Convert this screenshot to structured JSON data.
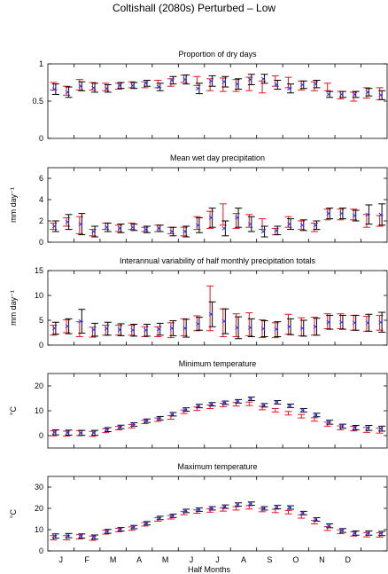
{
  "figure_title": "Coltishall (2080s) Perturbed – Low",
  "months": [
    "J",
    "F",
    "M",
    "A",
    "M",
    "J",
    "J",
    "A",
    "S",
    "O",
    "N",
    "D"
  ],
  "xlabel": "Half Months",
  "colors": {
    "observed": "#e8141e",
    "model": "#000000",
    "marker": "#3a3aff"
  },
  "chart_data": [
    {
      "type": "errorbar",
      "title": "Proportion of dry days",
      "ylabel": "",
      "ylim": [
        0,
        1
      ],
      "yticks": [
        "0",
        "0.5",
        "1"
      ],
      "ytick_values": [
        0,
        0.5,
        1
      ],
      "series": [
        {
          "name": "",
          "values": [
            0.7,
            0.64,
            0.72,
            0.7,
            0.69,
            0.7,
            0.72,
            0.72,
            0.73,
            0.75,
            0.8,
            0.77,
            0.72,
            0.72,
            0.71,
            0.73,
            0.69,
            0.77,
            0.75,
            0.71,
            0.7,
            0.69,
            0.58,
            0.56,
            0.61,
            0.6
          ],
          "err": [
            0.05,
            0.06,
            0.07,
            0.05,
            0.05,
            0.04,
            0.04,
            0.04,
            0.05,
            0.05,
            0.05,
            0.06,
            0.08,
            0.09,
            0.08,
            0.09,
            0.08,
            0.07,
            0.07,
            0.06,
            0.06,
            0.05,
            0.05,
            0.06,
            0.07,
            0.08
          ]
        },
        {
          "name": "",
          "values": [
            0.66,
            0.62,
            0.7,
            0.68,
            0.67,
            0.71,
            0.71,
            0.74,
            0.69,
            0.78,
            0.79,
            0.67,
            0.77,
            0.76,
            0.73,
            0.79,
            0.8,
            0.72,
            0.67,
            0.72,
            0.73,
            0.59,
            0.59,
            0.59,
            0.62,
            0.58
          ],
          "err": [
            0.07,
            0.07,
            0.06,
            0.06,
            0.05,
            0.04,
            0.04,
            0.04,
            0.05,
            0.05,
            0.06,
            0.07,
            0.07,
            0.07,
            0.07,
            0.07,
            0.06,
            0.06,
            0.06,
            0.05,
            0.05,
            0.04,
            0.04,
            0.04,
            0.05,
            0.06
          ]
        }
      ]
    },
    {
      "type": "errorbar",
      "title": "Mean wet day precipitation",
      "ylabel": "mm day⁻¹",
      "ylim": [
        0,
        7
      ],
      "yticks": [
        "0",
        "2",
        "4",
        "6"
      ],
      "ytick_values": [
        0,
        2,
        4,
        6
      ],
      "series": [
        {
          "name": "",
          "values": [
            1.5,
            1.9,
            1.6,
            0.9,
            1.5,
            1.3,
            1.5,
            1.2,
            1.3,
            1.1,
            1.0,
            1.8,
            2.1,
            2.6,
            2.0,
            2.0,
            1.7,
            1.0,
            1.9,
            1.6,
            1.4,
            2.6,
            2.6,
            2.6,
            2.0,
            2.0
          ],
          "err": [
            0.3,
            0.4,
            0.8,
            0.3,
            0.3,
            0.3,
            0.3,
            0.2,
            0.3,
            0.3,
            0.4,
            0.6,
            0.8,
            1.0,
            0.7,
            0.6,
            0.5,
            0.3,
            0.5,
            0.4,
            0.4,
            0.5,
            0.5,
            0.5,
            0.6,
            0.5
          ]
        },
        {
          "name": "",
          "values": [
            1.5,
            1.9,
            1.7,
            1.0,
            1.4,
            1.3,
            1.4,
            1.2,
            1.3,
            1.0,
            1.0,
            1.6,
            2.3,
            1.3,
            2.3,
            1.7,
            1.0,
            1.1,
            1.7,
            1.6,
            1.6,
            2.7,
            2.7,
            2.5,
            2.6,
            2.6
          ],
          "err": [
            0.5,
            0.7,
            1.0,
            0.5,
            0.4,
            0.4,
            0.3,
            0.3,
            0.3,
            0.4,
            0.5,
            0.7,
            0.9,
            0.7,
            0.9,
            0.7,
            0.5,
            0.4,
            0.5,
            0.5,
            0.4,
            0.5,
            0.5,
            0.5,
            0.9,
            1.0
          ]
        }
      ]
    },
    {
      "type": "errorbar",
      "title": "Interannual variability of half monthly precipitation totals",
      "ylabel": "mm day⁻¹",
      "ylim": [
        0,
        15
      ],
      "yticks": [
        "0",
        "5",
        "10",
        "15"
      ],
      "ytick_values": [
        0,
        5,
        10,
        15
      ],
      "series": [
        {
          "name": "",
          "values": [
            3.0,
            3.8,
            3.2,
            2.6,
            3.0,
            3.0,
            3.0,
            2.7,
            2.7,
            3.0,
            3.6,
            4.4,
            7.4,
            4.5,
            4.0,
            4.2,
            3.3,
            3.0,
            4.2,
            3.7,
            3.8,
            4.8,
            4.8,
            4.5,
            4.3,
            4.5
          ],
          "err": [
            1.0,
            1.3,
            1.5,
            1.0,
            1.0,
            1.0,
            1.0,
            1.0,
            1.0,
            1.5,
            1.7,
            1.5,
            4.5,
            2.8,
            2.3,
            2.3,
            1.8,
            1.5,
            2.0,
            1.8,
            1.8,
            1.5,
            1.5,
            1.5,
            1.5,
            1.5
          ]
        },
        {
          "name": "",
          "values": [
            3.4,
            3.8,
            4.8,
            3.1,
            3.3,
            3.1,
            3.0,
            3.0,
            3.2,
            3.4,
            3.4,
            4.3,
            6.2,
            4.8,
            3.5,
            3.5,
            3.3,
            3.2,
            3.7,
            3.4,
            3.7,
            4.6,
            4.6,
            4.5,
            4.5,
            4.6
          ],
          "err": [
            1.2,
            1.5,
            2.4,
            1.3,
            1.3,
            1.2,
            1.2,
            1.2,
            1.2,
            1.5,
            1.8,
            1.3,
            2.5,
            2.5,
            2.2,
            1.8,
            1.6,
            1.5,
            1.6,
            1.6,
            1.7,
            1.4,
            1.4,
            1.5,
            1.7,
            2.0
          ]
        }
      ]
    },
    {
      "type": "errorbar",
      "title": "Minimum temperature",
      "ylabel": "°C",
      "ylim": [
        -5,
        25
      ],
      "yticks": [
        "0",
        "10",
        "20"
      ],
      "ytick_values": [
        0,
        10,
        20
      ],
      "series": [
        {
          "name": "",
          "values": [
            0.9,
            0.8,
            1.0,
            0.7,
            2.0,
            3.0,
            3.8,
            5.5,
            6.4,
            7.3,
            9.6,
            10.8,
            11.6,
            12.3,
            12.6,
            12.8,
            11.1,
            10.2,
            9.0,
            7.8,
            6.5,
            4.6,
            3.1,
            2.8,
            2.3,
            2.0
          ],
          "err": [
            1.0,
            1.0,
            1.0,
            1.0,
            0.8,
            0.7,
            0.7,
            0.7,
            0.7,
            0.7,
            0.7,
            0.7,
            0.7,
            0.7,
            0.7,
            0.7,
            0.7,
            0.7,
            0.7,
            0.7,
            0.7,
            0.8,
            0.8,
            0.9,
            1.0,
            1.0
          ]
        },
        {
          "name": "",
          "values": [
            1.3,
            1.2,
            1.1,
            1.1,
            2.4,
            3.5,
            4.5,
            6.0,
            7.0,
            8.6,
            10.5,
            11.9,
            12.6,
            13.2,
            13.8,
            14.8,
            12.2,
            13.4,
            12.0,
            10.2,
            8.3,
            5.4,
            3.8,
            3.2,
            3.1,
            2.8
          ],
          "err": [
            1.0,
            1.0,
            1.0,
            1.0,
            0.8,
            0.7,
            0.7,
            0.7,
            0.7,
            0.7,
            0.7,
            0.7,
            0.7,
            0.7,
            0.7,
            0.7,
            0.7,
            0.7,
            0.7,
            0.7,
            0.7,
            0.8,
            0.8,
            0.9,
            1.0,
            1.0
          ]
        }
      ]
    },
    {
      "type": "errorbar",
      "title": "Maximum temperature",
      "ylabel": "°C",
      "ylim": [
        0,
        35
      ],
      "yticks": [
        "0",
        "10",
        "20",
        "30"
      ],
      "ytick_values": [
        0,
        10,
        20,
        30
      ],
      "series": [
        {
          "name": "",
          "values": [
            6.2,
            6.2,
            6.6,
            6.0,
            8.8,
            9.8,
            10.5,
            12.5,
            14.8,
            15.8,
            17.8,
            18.5,
            19.0,
            19.5,
            20.0,
            20.5,
            19.2,
            18.8,
            18.2,
            16.2,
            13.5,
            10.5,
            9.0,
            8.0,
            7.6,
            7.5
          ],
          "err": [
            1.0,
            1.0,
            1.0,
            1.0,
            0.9,
            0.8,
            0.8,
            0.8,
            0.8,
            0.8,
            0.8,
            0.8,
            0.8,
            0.8,
            0.8,
            0.8,
            0.8,
            0.8,
            0.8,
            0.8,
            0.8,
            0.9,
            0.9,
            1.0,
            1.0,
            1.0
          ]
        },
        {
          "name": "",
          "values": [
            7.0,
            7.2,
            7.0,
            6.5,
            9.2,
            10.2,
            11.2,
            13.0,
            15.5,
            16.5,
            18.8,
            19.4,
            20.0,
            20.8,
            21.8,
            22.2,
            20.0,
            20.6,
            20.4,
            17.8,
            14.8,
            11.8,
            9.6,
            8.4,
            8.4,
            8.2
          ],
          "err": [
            1.0,
            1.0,
            1.0,
            1.0,
            0.9,
            0.8,
            0.8,
            0.8,
            0.8,
            0.8,
            0.8,
            0.8,
            0.8,
            0.8,
            0.8,
            0.8,
            0.8,
            0.8,
            0.8,
            0.8,
            0.8,
            0.9,
            0.9,
            1.0,
            1.0,
            1.0
          ]
        }
      ]
    }
  ]
}
